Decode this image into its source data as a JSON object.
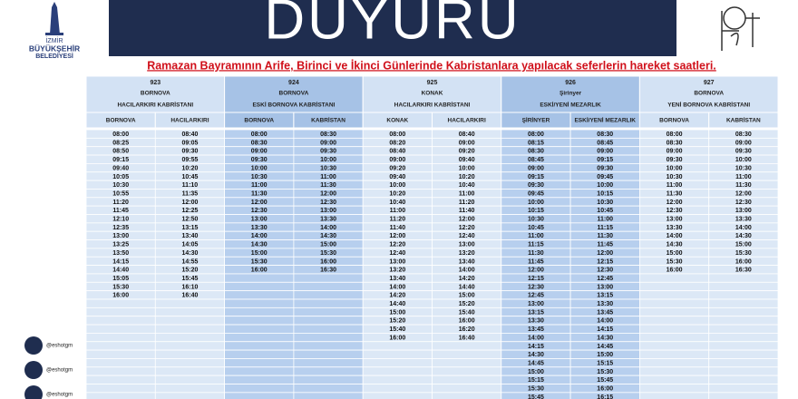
{
  "header": {
    "title": "DUYURU",
    "logo_lines": [
      "İZMİR",
      "BÜYÜKŞEHİR",
      "BELEDİYESİ"
    ],
    "subtitle": "Ramazan Bayramının Arife, Birinci ve İkinci Günlerinde Kabristanlara yapılacak seferlerin hareket saatleri."
  },
  "social": [
    "@eshotgm",
    "@eshotgm",
    "@eshotgm"
  ],
  "routes": [
    {
      "number": "923",
      "from": "BORNOVA",
      "to": "HACILARKIRI KABRİSTANI",
      "columns": [
        {
          "header": "BORNOVA",
          "times": [
            "08:00",
            "08:25",
            "08:50",
            "09:15",
            "09:40",
            "10:05",
            "10:30",
            "10:55",
            "11:20",
            "11:45",
            "12:10",
            "12:35",
            "13:00",
            "13:25",
            "13:50",
            "14:15",
            "14:40",
            "15:05",
            "15:30",
            "16:00"
          ]
        },
        {
          "header": "HACILARKIRI",
          "times": [
            "08:40",
            "09:05",
            "09:30",
            "09:55",
            "10:20",
            "10:45",
            "11:10",
            "11:35",
            "12:00",
            "12:25",
            "12:50",
            "13:15",
            "13:40",
            "14:05",
            "14:30",
            "14:55",
            "15:20",
            "15:45",
            "16:10",
            "16:40"
          ]
        }
      ]
    },
    {
      "number": "924",
      "from": "BORNOVA",
      "to": "ESKİ BORNOVA KABRİSTANI",
      "columns": [
        {
          "header": "BORNOVA",
          "times": [
            "08:00",
            "08:30",
            "09:00",
            "09:30",
            "10:00",
            "10:30",
            "11:00",
            "11:30",
            "12:00",
            "12:30",
            "13:00",
            "13:30",
            "14:00",
            "14:30",
            "15:00",
            "15:30",
            "16:00"
          ]
        },
        {
          "header": "KABRİSTAN",
          "times": [
            "08:30",
            "09:00",
            "09:30",
            "10:00",
            "10:30",
            "11:00",
            "11:30",
            "12:00",
            "12:30",
            "13:00",
            "13:30",
            "14:00",
            "14:30",
            "15:00",
            "15:30",
            "16:00",
            "16:30"
          ]
        }
      ]
    },
    {
      "number": "925",
      "from": "KONAK",
      "to": "HACILARKIRI KABRİSTANI",
      "columns": [
        {
          "header": "KONAK",
          "times": [
            "08:00",
            "08:20",
            "08:40",
            "09:00",
            "09:20",
            "09:40",
            "10:00",
            "10:20",
            "10:40",
            "11:00",
            "11:20",
            "11:40",
            "12:00",
            "12:20",
            "12:40",
            "13:00",
            "13:20",
            "13:40",
            "14:00",
            "14:20",
            "14:40",
            "15:00",
            "15:20",
            "15:40",
            "16:00"
          ]
        },
        {
          "header": "HACILARKIRI",
          "times": [
            "08:40",
            "09:00",
            "09:20",
            "09:40",
            "10:00",
            "10:20",
            "10:40",
            "11:00",
            "11:20",
            "11:40",
            "12:00",
            "12:20",
            "12:40",
            "13:00",
            "13:20",
            "13:40",
            "14:00",
            "14:20",
            "14:40",
            "15:00",
            "15:20",
            "15:40",
            "16:00",
            "16:20",
            "16:40"
          ]
        }
      ]
    },
    {
      "number": "926",
      "from": "Şirinyer",
      "to": "ESKİ/YENİ MEZARLIK",
      "columns": [
        {
          "header": "ŞİRİNYER",
          "times": [
            "08:00",
            "08:15",
            "08:30",
            "08:45",
            "09:00",
            "09:15",
            "09:30",
            "09:45",
            "10:00",
            "10:15",
            "10:30",
            "10:45",
            "11:00",
            "11:15",
            "11:30",
            "11:45",
            "12:00",
            "12:15",
            "12:30",
            "12:45",
            "13:00",
            "13:15",
            "13:30",
            "13:45",
            "14:00",
            "14:15",
            "14:30",
            "14:45",
            "15:00",
            "15:15",
            "15:30",
            "15:45"
          ]
        },
        {
          "header": "ESKİ/YENİ MEZARLIK",
          "times": [
            "08:30",
            "08:45",
            "09:00",
            "09:15",
            "09:30",
            "09:45",
            "10:00",
            "10:15",
            "10:30",
            "10:45",
            "11:00",
            "11:15",
            "11:30",
            "11:45",
            "12:00",
            "12:15",
            "12:30",
            "12:45",
            "13:00",
            "13:15",
            "13:30",
            "13:45",
            "14:00",
            "14:15",
            "14:30",
            "14:45",
            "15:00",
            "15:15",
            "15:30",
            "15:45",
            "16:00",
            "16:15"
          ]
        }
      ]
    },
    {
      "number": "927",
      "from": "BORNOVA",
      "to": "YENİ BORNOVA KABRİSTANI",
      "columns": [
        {
          "header": "BORNOVA",
          "times": [
            "08:00",
            "08:30",
            "09:00",
            "09:30",
            "10:00",
            "10:30",
            "11:00",
            "11:30",
            "12:00",
            "12:30",
            "13:00",
            "13:30",
            "14:00",
            "14:30",
            "15:00",
            "15:30",
            "16:00"
          ]
        },
        {
          "header": "KABRİSTAN",
          "times": [
            "08:30",
            "09:00",
            "09:30",
            "10:00",
            "10:30",
            "11:00",
            "11:30",
            "12:00",
            "12:30",
            "13:00",
            "13:30",
            "14:00",
            "14:30",
            "15:00",
            "15:30",
            "16:00",
            "16:30"
          ]
        }
      ]
    }
  ]
}
